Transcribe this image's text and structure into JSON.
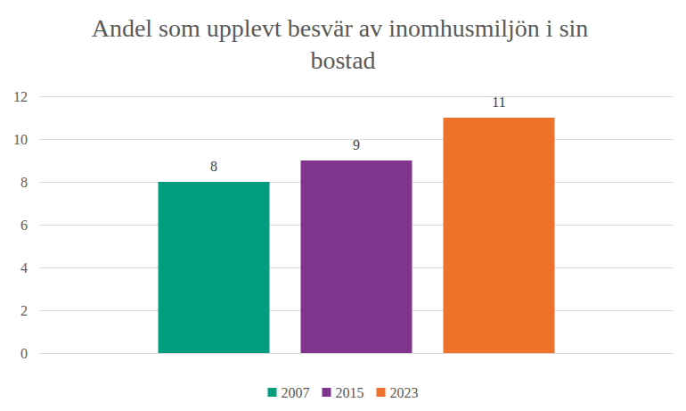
{
  "chart_data": {
    "type": "bar",
    "title": "Andel som upplevt besvär av inomhusmiljön i sin bostad",
    "categories": [
      null
    ],
    "series": [
      {
        "name": "2007",
        "color": "#009e7e",
        "values": [
          8
        ]
      },
      {
        "name": "2015",
        "color": "#7f368c",
        "values": [
          9
        ]
      },
      {
        "name": "2023",
        "color": "#ee7229",
        "values": [
          11
        ]
      }
    ],
    "ylim": [
      0,
      12
    ],
    "yticks": [
      0,
      2,
      4,
      6,
      8,
      10,
      12
    ],
    "grid": true,
    "legend": "bottom",
    "data_labels": true
  }
}
